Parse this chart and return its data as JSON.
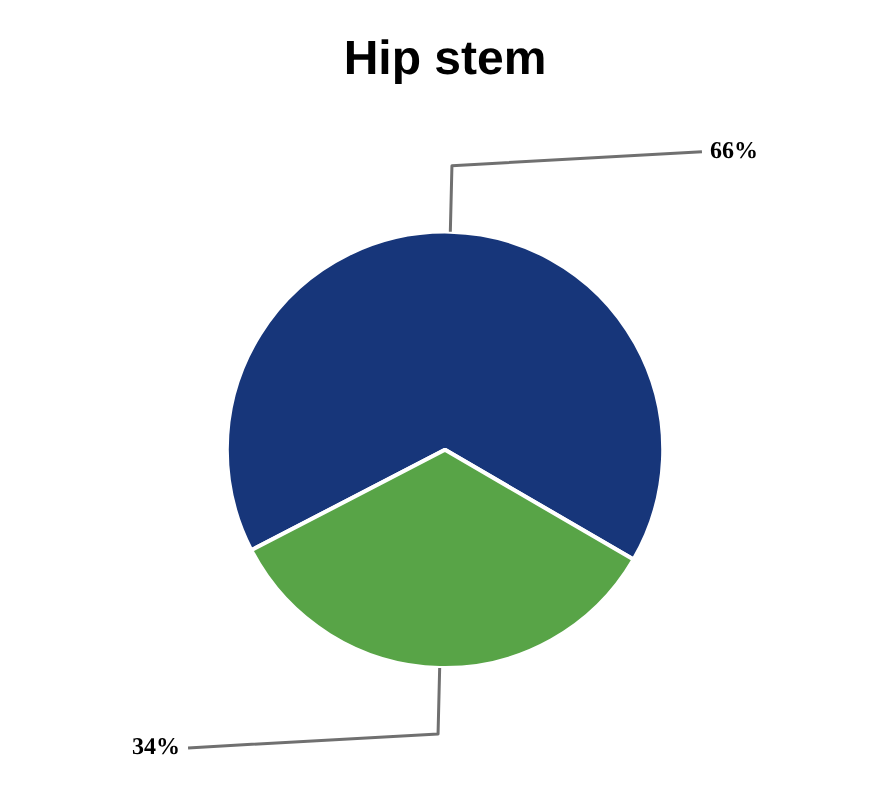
{
  "chart_data": {
    "type": "pie",
    "title": "Hip stem",
    "categories": [
      null,
      null
    ],
    "values": [
      66,
      34
    ],
    "colors": [
      "#17367a",
      "#58a447"
    ],
    "value_labels": [
      "66%",
      "34%"
    ],
    "legend": false
  }
}
